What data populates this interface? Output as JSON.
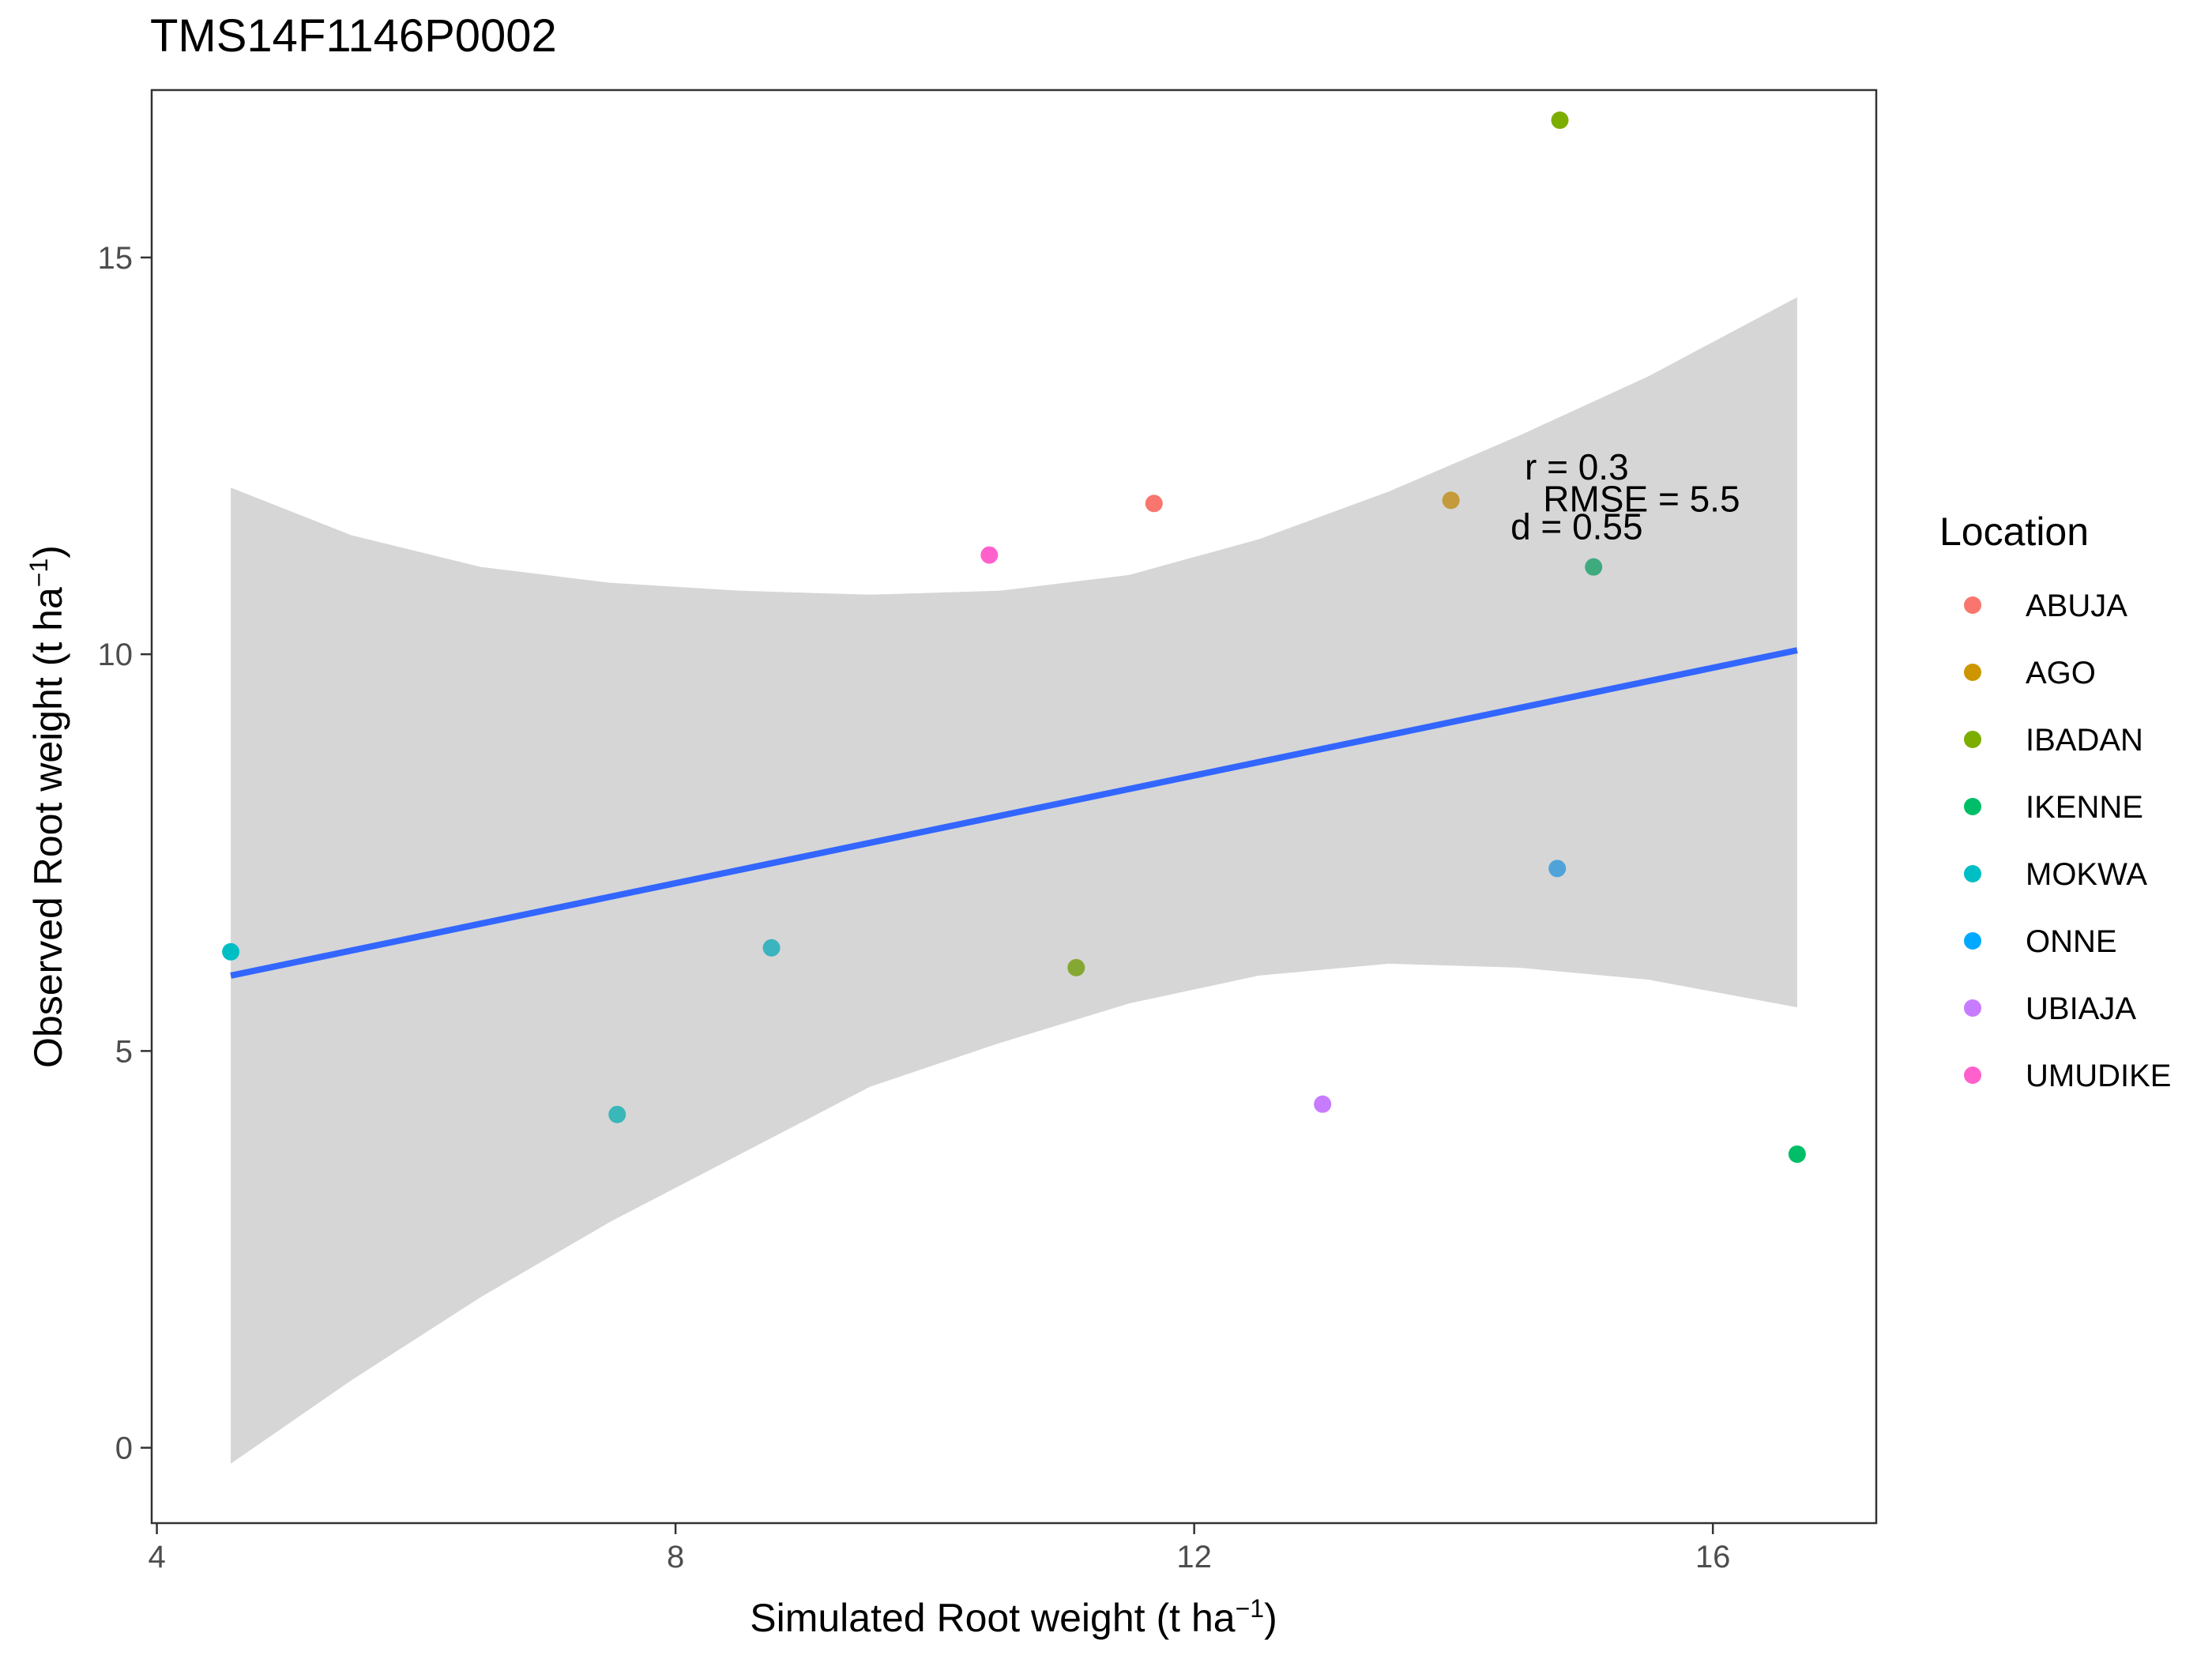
{
  "chart_data": {
    "type": "scatter",
    "title": "TMS14F1146P0002",
    "xlabel": {
      "main": "Simulated Root weight",
      "unit_open": "(t ha",
      "unit_sup": "−1",
      "unit_close": ")"
    },
    "ylabel": {
      "main": "Observed Root weight",
      "unit_open": "(t ha",
      "unit_sup": "−1",
      "unit_close": ")"
    },
    "xlim": [
      3.96,
      17.26
    ],
    "ylim": [
      -0.95,
      17.11
    ],
    "x_ticks": [
      4,
      8,
      12,
      16
    ],
    "y_ticks": [
      0,
      5,
      10,
      15
    ],
    "grid": false,
    "legend": {
      "title": "Location",
      "placement": "right",
      "entries": [
        {
          "name": "ABUJA",
          "color": "#F8766D"
        },
        {
          "name": "AGO",
          "color": "#CD9600"
        },
        {
          "name": "IBADAN",
          "color": "#7CAE00"
        },
        {
          "name": "IKENNE",
          "color": "#00BE67"
        },
        {
          "name": "MOKWA",
          "color": "#00BFC4"
        },
        {
          "name": "ONNE",
          "color": "#00A9FF"
        },
        {
          "name": "UBIAJA",
          "color": "#C77CFF"
        },
        {
          "name": "UMUDIKE",
          "color": "#FF61CC"
        }
      ]
    },
    "points": [
      {
        "x": 4.57,
        "y": 6.25,
        "color": "#00BFC4"
      },
      {
        "x": 7.55,
        "y": 4.2,
        "color": "#3AB7B8"
      },
      {
        "x": 8.74,
        "y": 6.3,
        "color": "#3AB4BF"
      },
      {
        "x": 10.42,
        "y": 11.25,
        "color": "#FF61CC"
      },
      {
        "x": 11.09,
        "y": 6.05,
        "color": "#85A832"
      },
      {
        "x": 11.69,
        "y": 11.9,
        "color": "#F8766D"
      },
      {
        "x": 12.99,
        "y": 4.33,
        "color": "#C77CFF"
      },
      {
        "x": 13.98,
        "y": 11.94,
        "color": "#C49A3A"
      },
      {
        "x": 14.8,
        "y": 7.3,
        "color": "#4FA3D9"
      },
      {
        "x": 14.82,
        "y": 16.73,
        "color": "#7CAE00"
      },
      {
        "x": 15.08,
        "y": 11.1,
        "color": "#3FAA7E"
      },
      {
        "x": 16.65,
        "y": 3.7,
        "color": "#00BE67"
      }
    ],
    "regression": {
      "x": [
        4.57,
        16.65
      ],
      "y": [
        5.95,
        10.05
      ],
      "color": "#3366FF"
    },
    "ci_band": {
      "x": [
        4.57,
        5.5,
        6.5,
        7.5,
        8.5,
        9.5,
        10.5,
        11.5,
        12.5,
        13.5,
        14.5,
        15.5,
        16.65
      ],
      "upper": [
        12.1,
        11.5,
        11.1,
        10.9,
        10.8,
        10.75,
        10.8,
        11.0,
        11.45,
        12.05,
        12.75,
        13.5,
        14.5
      ],
      "lower": [
        -0.2,
        0.85,
        1.9,
        2.85,
        3.7,
        4.55,
        5.1,
        5.6,
        5.95,
        6.1,
        6.05,
        5.9,
        5.55
      ],
      "color": "#D6D6D6"
    },
    "annotations": [
      {
        "text": "r = 0.3",
        "x": 14.95,
        "y": 12.2
      },
      {
        "text": "RMSE = 5.5",
        "x": 15.45,
        "y": 11.8
      },
      {
        "text": "d = 0.55",
        "x": 14.95,
        "y": 11.45
      }
    ]
  }
}
